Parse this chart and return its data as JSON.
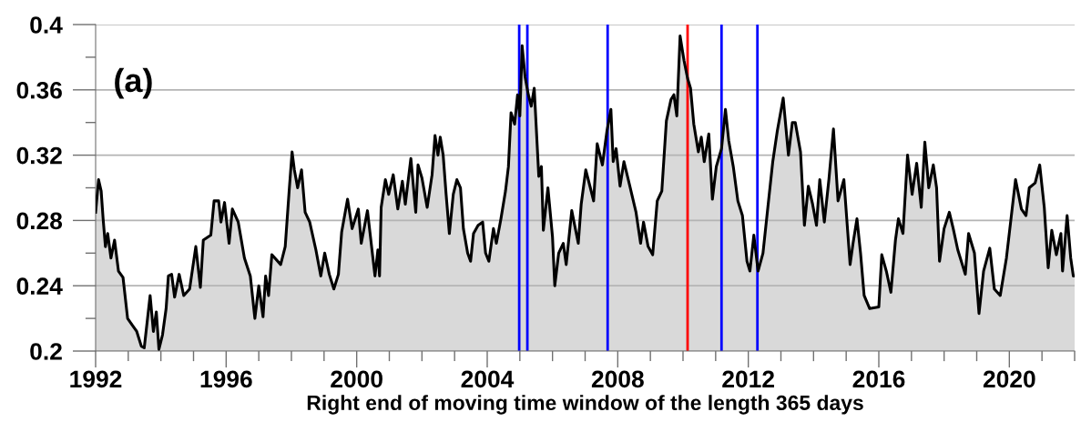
{
  "chart_data": {
    "type": "area",
    "xlabel": "Right end of moving time window of the length 365 days",
    "annotations": [
      "(a)"
    ],
    "xlim": [
      1992,
      2022
    ],
    "ylim": [
      0.2,
      0.4
    ],
    "xticks": [
      1992,
      {
        "value": 1993,
        "label": null
      },
      {
        "value": 1994,
        "label": null
      },
      {
        "value": 1995,
        "label": null
      },
      1996,
      {
        "value": 1997,
        "label": null
      },
      {
        "value": 1998,
        "label": null
      },
      {
        "value": 1999,
        "label": null
      },
      2000,
      {
        "value": 2001,
        "label": null
      },
      {
        "value": 2002,
        "label": null
      },
      {
        "value": 2003,
        "label": null
      },
      2004,
      {
        "value": 2005,
        "label": null
      },
      {
        "value": 2006,
        "label": null
      },
      {
        "value": 2007,
        "label": null
      },
      2008,
      {
        "value": 2009,
        "label": null
      },
      {
        "value": 2010,
        "label": null
      },
      {
        "value": 2011,
        "label": null
      },
      2012,
      {
        "value": 2013,
        "label": null
      },
      {
        "value": 2014,
        "label": null
      },
      {
        "value": 2015,
        "label": null
      },
      2016,
      {
        "value": 2017,
        "label": null
      },
      {
        "value": 2018,
        "label": null
      },
      {
        "value": 2019,
        "label": null
      },
      2020,
      {
        "value": 2021,
        "label": null
      },
      {
        "value": 2022,
        "label": null
      }
    ],
    "yticks": [
      0.2,
      {
        "value": 0.22,
        "label": null
      },
      0.24,
      {
        "value": 0.26,
        "label": null
      },
      0.28,
      {
        "value": 0.3,
        "label": null
      },
      0.32,
      {
        "value": 0.34,
        "label": null
      },
      0.36,
      {
        "value": 0.38,
        "label": null
      },
      0.4
    ],
    "grid": "y",
    "ref_lines": [
      {
        "axis": "x",
        "value": 2004.98,
        "color": "#0000ff"
      },
      {
        "axis": "x",
        "value": 2005.23,
        "color": "#0000ff"
      },
      {
        "axis": "x",
        "value": 2007.69,
        "color": "#0000ff"
      },
      {
        "axis": "x",
        "value": 2010.14,
        "color": "#ff0000"
      },
      {
        "axis": "x",
        "value": 2011.18,
        "color": "#0000ff"
      },
      {
        "axis": "x",
        "value": 2012.28,
        "color": "#0000ff"
      }
    ],
    "series": [
      {
        "color": "#000000",
        "x": [
          1992.0,
          1992.09,
          1992.17,
          1992.23,
          1992.3,
          1992.37,
          1992.47,
          1992.58,
          1992.7,
          1992.84,
          1992.98,
          1993.12,
          1993.26,
          1993.4,
          1993.49,
          1993.67,
          1993.77,
          1993.86,
          1993.94,
          1994.05,
          1994.16,
          1994.23,
          1994.33,
          1994.42,
          1994.56,
          1994.7,
          1994.88,
          1995.07,
          1995.21,
          1995.3,
          1995.53,
          1995.63,
          1995.77,
          1995.84,
          1995.95,
          1996.09,
          1996.19,
          1996.37,
          1996.56,
          1996.74,
          1996.88,
          1997.0,
          1997.13,
          1997.21,
          1997.3,
          1997.4,
          1997.67,
          1997.81,
          1997.93,
          1998.02,
          1998.09,
          1998.19,
          1998.31,
          1998.42,
          1998.56,
          1998.75,
          1998.9,
          1999.02,
          1999.16,
          1999.3,
          1999.44,
          1999.54,
          1999.72,
          1999.86,
          2000.05,
          2000.14,
          2000.33,
          2000.56,
          2000.65,
          2000.7,
          2000.75,
          2000.88,
          2000.98,
          2001.12,
          2001.26,
          2001.4,
          2001.49,
          2001.66,
          2001.81,
          2001.88,
          2002.0,
          2002.16,
          2002.31,
          2002.4,
          2002.49,
          2002.56,
          2002.65,
          2002.74,
          2002.84,
          2002.96,
          2003.07,
          2003.18,
          2003.27,
          2003.4,
          2003.49,
          2003.58,
          2003.72,
          2003.86,
          2003.95,
          2004.05,
          2004.19,
          2004.28,
          2004.42,
          2004.56,
          2004.65,
          2004.73,
          2004.84,
          2004.93,
          2005.0,
          2005.07,
          2005.16,
          2005.26,
          2005.35,
          2005.44,
          2005.58,
          2005.66,
          2005.72,
          2005.86,
          2006.0,
          2006.07,
          2006.19,
          2006.33,
          2006.42,
          2006.59,
          2006.79,
          2006.88,
          2007.02,
          2007.16,
          2007.26,
          2007.37,
          2007.53,
          2007.67,
          2007.79,
          2007.86,
          2007.95,
          2008.07,
          2008.19,
          2008.37,
          2008.56,
          2008.7,
          2008.79,
          2008.93,
          2009.07,
          2009.21,
          2009.35,
          2009.49,
          2009.63,
          2009.72,
          2009.81,
          2009.91,
          2010.03,
          2010.14,
          2010.23,
          2010.33,
          2010.47,
          2010.56,
          2010.65,
          2010.79,
          2010.9,
          2011.02,
          2011.18,
          2011.3,
          2011.4,
          2011.54,
          2011.68,
          2011.82,
          2011.96,
          2012.05,
          2012.17,
          2012.3,
          2012.45,
          2012.61,
          2012.75,
          2012.89,
          2013.07,
          2013.23,
          2013.35,
          2013.44,
          2013.6,
          2013.72,
          2013.84,
          2013.97,
          2014.09,
          2014.19,
          2014.33,
          2014.47,
          2014.61,
          2014.75,
          2014.93,
          2015.12,
          2015.21,
          2015.33,
          2015.44,
          2015.55,
          2015.72,
          2016.0,
          2016.09,
          2016.23,
          2016.37,
          2016.51,
          2016.6,
          2016.74,
          2016.88,
          2017.02,
          2017.16,
          2017.3,
          2017.41,
          2017.53,
          2017.67,
          2017.77,
          2017.86,
          2018.0,
          2018.16,
          2018.28,
          2018.42,
          2018.65,
          2018.75,
          2018.93,
          2019.07,
          2019.21,
          2019.4,
          2019.54,
          2019.72,
          2019.91,
          2020.05,
          2020.19,
          2020.37,
          2020.51,
          2020.61,
          2020.79,
          2020.93,
          2021.07,
          2021.19,
          2021.3,
          2021.44,
          2021.58,
          2021.63,
          2021.77,
          2021.88,
          2021.96,
          2022.0
        ],
        "values": [
          0.285,
          0.305,
          0.298,
          0.281,
          0.264,
          0.272,
          0.257,
          0.268,
          0.249,
          0.245,
          0.22,
          0.216,
          0.212,
          0.203,
          0.202,
          0.234,
          0.212,
          0.224,
          0.201,
          0.21,
          0.226,
          0.246,
          0.247,
          0.233,
          0.247,
          0.234,
          0.238,
          0.264,
          0.239,
          0.268,
          0.271,
          0.292,
          0.292,
          0.279,
          0.291,
          0.266,
          0.287,
          0.279,
          0.257,
          0.246,
          0.22,
          0.24,
          0.221,
          0.246,
          0.234,
          0.259,
          0.253,
          0.264,
          0.298,
          0.322,
          0.311,
          0.3,
          0.311,
          0.285,
          0.279,
          0.262,
          0.246,
          0.26,
          0.247,
          0.238,
          0.247,
          0.273,
          0.293,
          0.275,
          0.287,
          0.266,
          0.286,
          0.246,
          0.262,
          0.246,
          0.288,
          0.305,
          0.296,
          0.308,
          0.287,
          0.304,
          0.29,
          0.318,
          0.285,
          0.314,
          0.306,
          0.288,
          0.308,
          0.332,
          0.32,
          0.331,
          0.32,
          0.296,
          0.272,
          0.296,
          0.305,
          0.3,
          0.275,
          0.26,
          0.255,
          0.272,
          0.277,
          0.279,
          0.26,
          0.255,
          0.275,
          0.266,
          0.281,
          0.298,
          0.313,
          0.346,
          0.339,
          0.357,
          0.344,
          0.387,
          0.368,
          0.357,
          0.35,
          0.361,
          0.307,
          0.313,
          0.274,
          0.3,
          0.27,
          0.24,
          0.26,
          0.266,
          0.253,
          0.286,
          0.266,
          0.29,
          0.311,
          0.3,
          0.292,
          0.327,
          0.314,
          0.335,
          0.348,
          0.316,
          0.324,
          0.301,
          0.316,
          0.301,
          0.285,
          0.266,
          0.279,
          0.264,
          0.259,
          0.292,
          0.298,
          0.341,
          0.354,
          0.357,
          0.344,
          0.393,
          0.378,
          0.367,
          0.361,
          0.339,
          0.322,
          0.331,
          0.316,
          0.333,
          0.293,
          0.313,
          0.324,
          0.348,
          0.329,
          0.313,
          0.292,
          0.283,
          0.255,
          0.249,
          0.271,
          0.249,
          0.26,
          0.29,
          0.316,
          0.335,
          0.355,
          0.32,
          0.34,
          0.34,
          0.322,
          0.277,
          0.301,
          0.29,
          0.277,
          0.305,
          0.279,
          0.305,
          0.336,
          0.292,
          0.305,
          0.253,
          0.266,
          0.281,
          0.26,
          0.234,
          0.226,
          0.227,
          0.259,
          0.249,
          0.236,
          0.268,
          0.281,
          0.272,
          0.32,
          0.296,
          0.315,
          0.288,
          0.328,
          0.3,
          0.314,
          0.3,
          0.255,
          0.275,
          0.285,
          0.275,
          0.262,
          0.247,
          0.272,
          0.26,
          0.223,
          0.249,
          0.263,
          0.238,
          0.234,
          0.257,
          0.281,
          0.305,
          0.287,
          0.283,
          0.3,
          0.303,
          0.314,
          0.288,
          0.251,
          0.274,
          0.259,
          0.272,
          0.249,
          0.283,
          0.257,
          0.246,
          0.246
        ]
      }
    ]
  }
}
